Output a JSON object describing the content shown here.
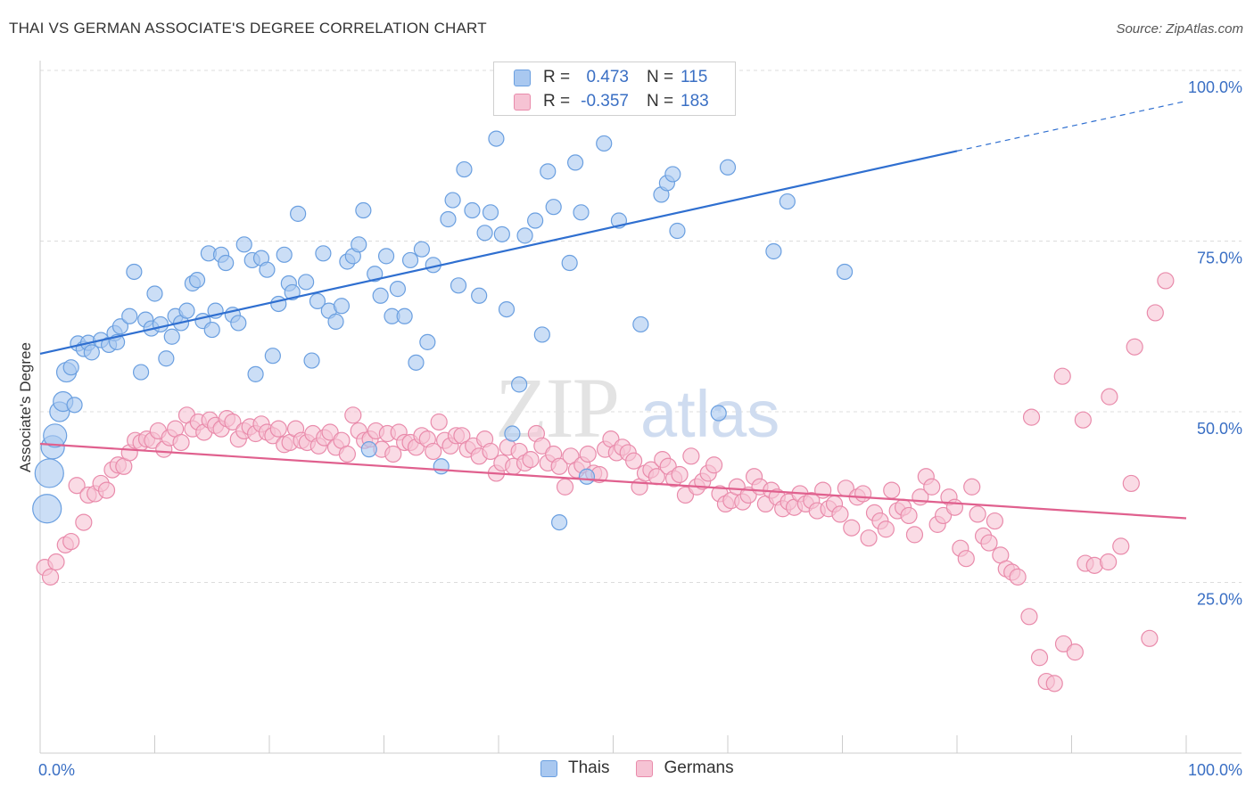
{
  "title": "THAI VS GERMAN ASSOCIATE'S DEGREE CORRELATION CHART",
  "source": "Source: ZipAtlas.com",
  "watermark": {
    "zip": "ZIP",
    "atlas": "atlas"
  },
  "legend": {
    "r_label": "R =",
    "n_label": "N =",
    "rows": [
      {
        "r": "0.473",
        "n": "115"
      },
      {
        "r": "-0.357",
        "n": "183"
      }
    ]
  },
  "chart_data": {
    "type": "scatter",
    "xlabel": "",
    "ylabel": "Associate's Degree",
    "xlim": [
      0,
      100
    ],
    "ylim": [
      0,
      100
    ],
    "x_tick_labels": [
      "0.0%",
      "100.0%"
    ],
    "y_tick_labels": [
      "100.0%",
      "75.0%",
      "50.0%",
      "25.0%"
    ],
    "y_ticks": [
      100,
      75,
      50,
      25
    ],
    "grid": true,
    "legend_position": "top-center",
    "series": [
      {
        "name": "Thais",
        "color": "#6a9fe0",
        "fill": "#a9c8f0",
        "trend_color": "#2f6fd0",
        "trend": {
          "x0": 0,
          "y0": 58.5,
          "x1": 80,
          "y1": 88.2,
          "dash_x1": 100,
          "dash_y1": 95.5
        },
        "points": [
          [
            0.6,
            35.8
          ],
          [
            0.8,
            41.0
          ],
          [
            1.1,
            44.8
          ],
          [
            1.3,
            46.5
          ],
          [
            1.7,
            50.0
          ],
          [
            2.0,
            51.5
          ],
          [
            3.0,
            51.0
          ],
          [
            2.3,
            55.8
          ],
          [
            2.7,
            56.5
          ],
          [
            3.3,
            60.0
          ],
          [
            3.8,
            59.2
          ],
          [
            4.2,
            60.1
          ],
          [
            4.5,
            58.7
          ],
          [
            5.3,
            60.5
          ],
          [
            6.0,
            59.8
          ],
          [
            6.5,
            61.5
          ],
          [
            7.0,
            62.5
          ],
          [
            6.7,
            60.2
          ],
          [
            7.8,
            64.0
          ],
          [
            8.2,
            70.5
          ],
          [
            8.8,
            55.8
          ],
          [
            9.2,
            63.5
          ],
          [
            9.7,
            62.2
          ],
          [
            10.0,
            67.3
          ],
          [
            10.5,
            62.8
          ],
          [
            11.0,
            57.8
          ],
          [
            11.5,
            61.0
          ],
          [
            11.8,
            64.0
          ],
          [
            12.3,
            63.0
          ],
          [
            12.8,
            64.8
          ],
          [
            13.3,
            68.8
          ],
          [
            13.7,
            69.3
          ],
          [
            14.2,
            63.3
          ],
          [
            14.7,
            73.2
          ],
          [
            15.0,
            62.0
          ],
          [
            15.3,
            64.8
          ],
          [
            15.8,
            73.0
          ],
          [
            16.2,
            71.8
          ],
          [
            16.8,
            64.2
          ],
          [
            17.3,
            63.0
          ],
          [
            17.8,
            74.5
          ],
          [
            18.5,
            72.2
          ],
          [
            18.8,
            55.5
          ],
          [
            19.3,
            72.5
          ],
          [
            19.8,
            70.8
          ],
          [
            20.3,
            58.2
          ],
          [
            20.8,
            65.8
          ],
          [
            21.3,
            73.0
          ],
          [
            21.7,
            68.8
          ],
          [
            22.0,
            67.5
          ],
          [
            22.5,
            79.0
          ],
          [
            23.2,
            69.0
          ],
          [
            23.7,
            57.5
          ],
          [
            24.2,
            66.2
          ],
          [
            24.7,
            73.2
          ],
          [
            25.2,
            64.8
          ],
          [
            25.8,
            63.2
          ],
          [
            26.3,
            65.5
          ],
          [
            26.8,
            72.0
          ],
          [
            27.3,
            72.8
          ],
          [
            27.8,
            74.5
          ],
          [
            28.2,
            79.5
          ],
          [
            28.7,
            44.5
          ],
          [
            29.2,
            70.2
          ],
          [
            29.7,
            67.0
          ],
          [
            30.2,
            72.8
          ],
          [
            30.7,
            64.0
          ],
          [
            31.2,
            68.0
          ],
          [
            31.8,
            64.0
          ],
          [
            32.3,
            72.2
          ],
          [
            32.8,
            57.2
          ],
          [
            33.3,
            73.8
          ],
          [
            33.8,
            60.2
          ],
          [
            34.3,
            71.5
          ],
          [
            35.0,
            42.0
          ],
          [
            35.6,
            78.2
          ],
          [
            36.0,
            81.0
          ],
          [
            36.5,
            68.5
          ],
          [
            37.0,
            85.5
          ],
          [
            37.7,
            79.5
          ],
          [
            38.3,
            67.0
          ],
          [
            38.8,
            76.2
          ],
          [
            39.3,
            79.2
          ],
          [
            39.8,
            90.0
          ],
          [
            40.3,
            76.0
          ],
          [
            40.7,
            65.0
          ],
          [
            41.2,
            46.8
          ],
          [
            41.8,
            54.0
          ],
          [
            42.3,
            75.8
          ],
          [
            43.2,
            78.0
          ],
          [
            43.8,
            61.3
          ],
          [
            44.3,
            85.2
          ],
          [
            44.8,
            80.0
          ],
          [
            45.3,
            33.8
          ],
          [
            46.2,
            71.8
          ],
          [
            46.7,
            86.5
          ],
          [
            47.2,
            79.2
          ],
          [
            47.7,
            40.5
          ],
          [
            49.2,
            89.3
          ],
          [
            50.5,
            78.0
          ],
          [
            52.4,
            62.8
          ],
          [
            54.2,
            81.8
          ],
          [
            54.7,
            83.5
          ],
          [
            55.2,
            84.8
          ],
          [
            55.6,
            76.5
          ],
          [
            59.2,
            49.8
          ],
          [
            60.0,
            85.8
          ],
          [
            64.0,
            73.5
          ],
          [
            65.2,
            80.8
          ],
          [
            70.2,
            70.5
          ]
        ]
      },
      {
        "name": "Germans",
        "color": "#e98bab",
        "fill": "#f6c3d4",
        "trend_color": "#e0608e",
        "trend": {
          "x0": 0,
          "y0": 45.3,
          "x1": 100,
          "y1": 34.4
        },
        "points": [
          [
            0.4,
            27.2
          ],
          [
            0.9,
            25.8
          ],
          [
            1.4,
            28.0
          ],
          [
            2.2,
            30.5
          ],
          [
            2.7,
            31.0
          ],
          [
            3.2,
            39.2
          ],
          [
            3.8,
            33.8
          ],
          [
            4.2,
            37.8
          ],
          [
            4.8,
            38.0
          ],
          [
            5.3,
            39.5
          ],
          [
            5.8,
            38.5
          ],
          [
            6.3,
            41.5
          ],
          [
            6.8,
            42.2
          ],
          [
            7.3,
            42.0
          ],
          [
            7.8,
            44.0
          ],
          [
            8.3,
            45.8
          ],
          [
            8.8,
            45.5
          ],
          [
            9.3,
            46.0
          ],
          [
            9.8,
            45.8
          ],
          [
            10.3,
            47.2
          ],
          [
            10.8,
            44.5
          ],
          [
            11.3,
            46.2
          ],
          [
            11.8,
            47.5
          ],
          [
            12.3,
            45.5
          ],
          [
            12.8,
            49.5
          ],
          [
            13.3,
            47.5
          ],
          [
            13.8,
            48.5
          ],
          [
            14.3,
            47.0
          ],
          [
            14.8,
            48.8
          ],
          [
            15.3,
            48.0
          ],
          [
            15.8,
            47.5
          ],
          [
            16.3,
            49.0
          ],
          [
            16.8,
            48.5
          ],
          [
            17.3,
            46.0
          ],
          [
            17.8,
            47.2
          ],
          [
            18.3,
            47.8
          ],
          [
            18.8,
            46.8
          ],
          [
            19.3,
            48.2
          ],
          [
            19.8,
            47.0
          ],
          [
            20.3,
            46.5
          ],
          [
            20.8,
            47.5
          ],
          [
            21.3,
            45.2
          ],
          [
            21.8,
            45.5
          ],
          [
            22.3,
            47.5
          ],
          [
            22.8,
            45.8
          ],
          [
            23.3,
            45.5
          ],
          [
            23.8,
            46.8
          ],
          [
            24.3,
            45.0
          ],
          [
            24.8,
            46.2
          ],
          [
            25.3,
            47.0
          ],
          [
            25.8,
            44.8
          ],
          [
            26.3,
            45.8
          ],
          [
            26.8,
            43.8
          ],
          [
            27.3,
            49.5
          ],
          [
            27.8,
            47.2
          ],
          [
            28.3,
            45.8
          ],
          [
            28.8,
            46.0
          ],
          [
            29.3,
            47.2
          ],
          [
            29.8,
            44.5
          ],
          [
            30.3,
            46.8
          ],
          [
            30.8,
            43.8
          ],
          [
            31.3,
            47.0
          ],
          [
            31.8,
            45.5
          ],
          [
            32.3,
            45.5
          ],
          [
            32.8,
            44.8
          ],
          [
            33.3,
            46.5
          ],
          [
            33.8,
            46.0
          ],
          [
            34.3,
            44.2
          ],
          [
            34.8,
            48.5
          ],
          [
            35.3,
            45.8
          ],
          [
            35.8,
            45.0
          ],
          [
            36.3,
            46.5
          ],
          [
            36.8,
            46.5
          ],
          [
            37.3,
            44.5
          ],
          [
            37.8,
            45.0
          ],
          [
            38.3,
            43.5
          ],
          [
            38.8,
            46.0
          ],
          [
            39.3,
            44.2
          ],
          [
            39.8,
            41.0
          ],
          [
            40.3,
            42.5
          ],
          [
            40.8,
            44.8
          ],
          [
            41.3,
            42.0
          ],
          [
            41.8,
            44.2
          ],
          [
            42.3,
            42.5
          ],
          [
            42.8,
            43.0
          ],
          [
            43.3,
            46.8
          ],
          [
            43.8,
            45.0
          ],
          [
            44.3,
            42.5
          ],
          [
            44.8,
            43.8
          ],
          [
            45.3,
            42.0
          ],
          [
            45.8,
            39.0
          ],
          [
            46.3,
            43.5
          ],
          [
            46.8,
            41.5
          ],
          [
            47.3,
            42.2
          ],
          [
            47.8,
            43.8
          ],
          [
            48.3,
            41.0
          ],
          [
            48.8,
            40.8
          ],
          [
            49.3,
            44.5
          ],
          [
            49.8,
            46.0
          ],
          [
            50.3,
            44.0
          ],
          [
            50.8,
            44.8
          ],
          [
            51.3,
            44.0
          ],
          [
            51.8,
            42.8
          ],
          [
            52.3,
            39.0
          ],
          [
            52.8,
            41.0
          ],
          [
            53.3,
            41.5
          ],
          [
            53.8,
            40.5
          ],
          [
            54.3,
            43.0
          ],
          [
            54.8,
            42.0
          ],
          [
            55.3,
            40.2
          ],
          [
            55.8,
            40.8
          ],
          [
            56.3,
            37.8
          ],
          [
            56.8,
            43.5
          ],
          [
            57.3,
            39.0
          ],
          [
            57.8,
            39.8
          ],
          [
            58.3,
            41.0
          ],
          [
            58.8,
            42.2
          ],
          [
            59.3,
            38.0
          ],
          [
            59.8,
            36.5
          ],
          [
            60.3,
            37.0
          ],
          [
            60.8,
            39.0
          ],
          [
            61.3,
            36.8
          ],
          [
            61.8,
            37.8
          ],
          [
            62.3,
            40.5
          ],
          [
            62.8,
            39.0
          ],
          [
            63.3,
            36.5
          ],
          [
            63.8,
            38.5
          ],
          [
            64.3,
            37.5
          ],
          [
            64.8,
            35.8
          ],
          [
            65.3,
            36.8
          ],
          [
            65.8,
            36.0
          ],
          [
            66.3,
            38.0
          ],
          [
            66.8,
            36.5
          ],
          [
            67.3,
            37.0
          ],
          [
            67.8,
            35.5
          ],
          [
            68.3,
            38.5
          ],
          [
            68.8,
            35.8
          ],
          [
            69.3,
            36.5
          ],
          [
            69.8,
            35.0
          ],
          [
            70.3,
            38.8
          ],
          [
            70.8,
            33.0
          ],
          [
            71.3,
            37.5
          ],
          [
            71.8,
            38.0
          ],
          [
            72.3,
            31.5
          ],
          [
            72.8,
            35.2
          ],
          [
            73.3,
            34.0
          ],
          [
            73.8,
            32.8
          ],
          [
            74.3,
            38.5
          ],
          [
            74.8,
            35.5
          ],
          [
            75.3,
            36.0
          ],
          [
            75.8,
            34.8
          ],
          [
            76.3,
            32.0
          ],
          [
            76.8,
            37.5
          ],
          [
            77.3,
            40.5
          ],
          [
            77.8,
            39.0
          ],
          [
            78.3,
            33.5
          ],
          [
            78.8,
            34.8
          ],
          [
            79.3,
            37.5
          ],
          [
            79.8,
            36.0
          ],
          [
            80.3,
            30.0
          ],
          [
            80.8,
            28.5
          ],
          [
            81.3,
            39.0
          ],
          [
            81.8,
            35.0
          ],
          [
            82.3,
            31.8
          ],
          [
            82.8,
            30.8
          ],
          [
            83.3,
            34.0
          ],
          [
            83.8,
            29.0
          ],
          [
            84.3,
            27.0
          ],
          [
            84.8,
            26.5
          ],
          [
            85.3,
            25.8
          ],
          [
            86.3,
            20.0
          ],
          [
            87.2,
            14.0
          ],
          [
            87.8,
            10.5
          ],
          [
            88.5,
            10.2
          ],
          [
            89.3,
            16.0
          ],
          [
            90.3,
            14.8
          ],
          [
            91.2,
            27.8
          ],
          [
            92.0,
            27.5
          ],
          [
            93.2,
            28.0
          ],
          [
            94.3,
            30.3
          ],
          [
            95.2,
            39.5
          ],
          [
            96.8,
            16.8
          ],
          [
            98.2,
            69.2
          ],
          [
            97.3,
            64.5
          ],
          [
            95.5,
            59.5
          ],
          [
            93.3,
            52.2
          ],
          [
            91.0,
            48.8
          ],
          [
            89.2,
            55.2
          ],
          [
            86.5,
            49.2
          ]
        ]
      }
    ]
  }
}
